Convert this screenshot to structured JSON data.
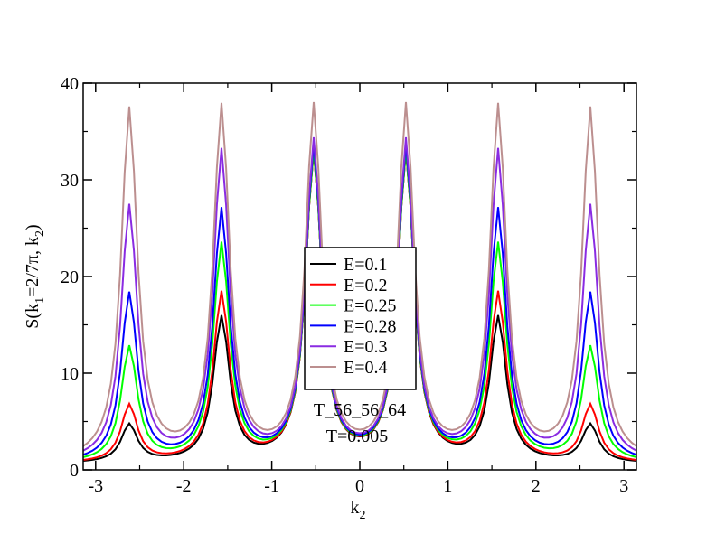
{
  "chart_data": {
    "type": "line",
    "xlabel": {
      "main": "k",
      "sub": "2"
    },
    "ylabel": {
      "p1": "S(k",
      "s1": "1",
      "p2": "=2/7π, k",
      "s2": "2",
      "p3": ")"
    },
    "xlim": [
      -3.14159,
      3.14159
    ],
    "ylim": [
      0,
      40
    ],
    "xticks": [
      -3,
      -2,
      -1,
      0,
      1,
      2,
      3
    ],
    "xtick_labels": [
      "-3",
      "-2",
      "-1",
      "0",
      "1",
      "2",
      "3"
    ],
    "yticks": [
      0,
      10,
      20,
      30,
      40
    ],
    "ytick_labels": [
      "0",
      "10",
      "20",
      "30",
      "40"
    ],
    "peak_positions": [
      -2.618,
      -1.571,
      -0.524,
      0.524,
      1.571,
      2.618
    ],
    "peak_width": 0.11,
    "background": 0.6,
    "series": [
      {
        "name": "E=0.1",
        "color": "#000000",
        "peaks": [
          4.5,
          15.5,
          32.5,
          32.5,
          15.5,
          4.5
        ]
      },
      {
        "name": "E=0.2",
        "color": "#ff0000",
        "peaks": [
          6.5,
          18.0,
          32.5,
          32.5,
          18.0,
          6.5
        ]
      },
      {
        "name": "E=0.25",
        "color": "#00ff00",
        "peaks": [
          12.5,
          23.0,
          32.5,
          32.5,
          23.0,
          12.5
        ]
      },
      {
        "name": "E=0.28",
        "color": "#0000ff",
        "peaks": [
          18.0,
          26.5,
          33.0,
          33.0,
          26.5,
          18.0
        ]
      },
      {
        "name": "E=0.3",
        "color": "#8a2be2",
        "peaks": [
          27.0,
          32.5,
          33.5,
          33.5,
          32.5,
          27.0
        ]
      },
      {
        "name": "E=0.4",
        "color": "#bc8f8f",
        "peaks": [
          37.0,
          37.0,
          37.0,
          37.0,
          37.0,
          37.0
        ]
      }
    ],
    "annotations": [
      "T_56_56_64",
      "T=0.005"
    ]
  }
}
